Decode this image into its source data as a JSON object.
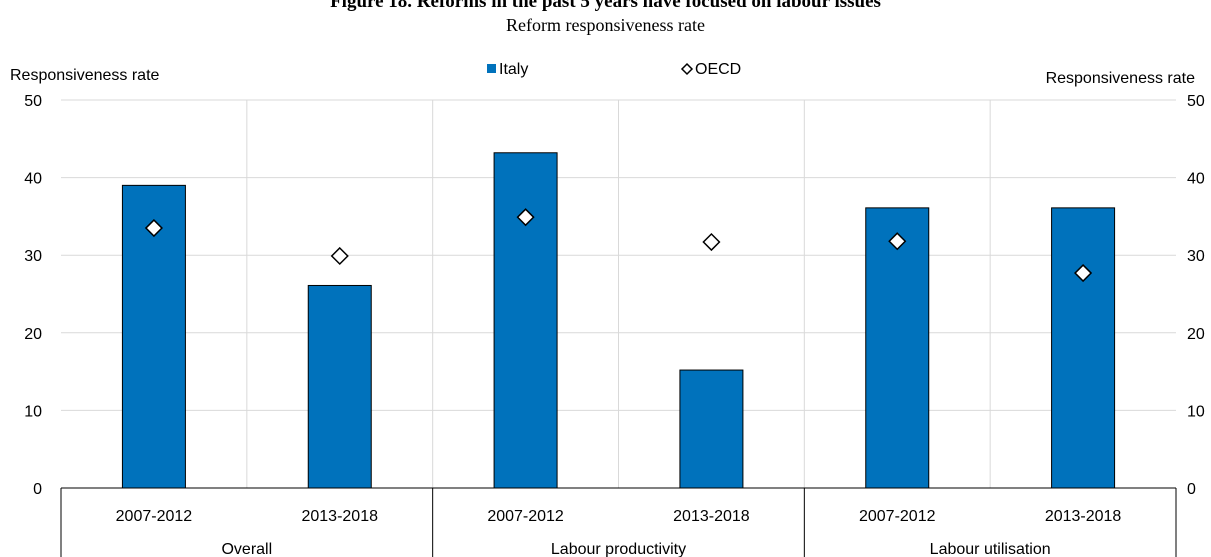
{
  "title": "Figure 18. Reforms in the past 5 years have focused on labour issues",
  "subtitle": "Reform responsiveness rate",
  "colors": {
    "italy": "#0072BC",
    "grid": "#d9d9d9",
    "axis": "#000000",
    "oecd_fill": "#ffffff"
  },
  "chart_data": {
    "type": "bar",
    "ylabel_left": "Responsiveness rate",
    "ylabel_right": "Responsiveness rate",
    "ylim": [
      0,
      50
    ],
    "yticks": [
      0,
      10,
      20,
      30,
      40,
      50
    ],
    "grid": true,
    "legend_position": "top-center",
    "groups": [
      "Overall",
      "Labour productivity",
      "Labour utilisation"
    ],
    "categories": [
      "2007-2012",
      "2013-2018",
      "2007-2012",
      "2013-2018",
      "2007-2012",
      "2013-2018"
    ],
    "series": [
      {
        "name": "Italy",
        "kind": "bar",
        "values": [
          39.0,
          26.1,
          43.2,
          15.2,
          36.1,
          36.1
        ]
      },
      {
        "name": "OECD",
        "kind": "marker",
        "marker": "diamond",
        "values": [
          33.5,
          29.9,
          34.9,
          31.7,
          31.8,
          27.7
        ]
      }
    ]
  }
}
